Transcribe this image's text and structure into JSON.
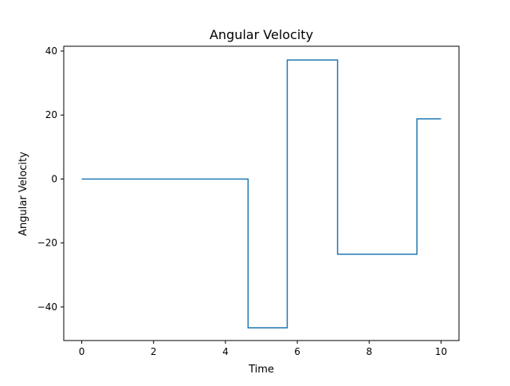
{
  "chart_data": {
    "type": "line",
    "title": "Angular Velocity",
    "xlabel": "Time",
    "ylabel": "Angular Velocity",
    "xlim": [
      -0.5,
      10.5
    ],
    "ylim": [
      -50.5,
      41.5
    ],
    "xticks": [
      0,
      2,
      4,
      6,
      8,
      10
    ],
    "xtick_labels": [
      "0",
      "2",
      "4",
      "6",
      "8",
      "10"
    ],
    "yticks": [
      -40,
      -20,
      0,
      20,
      40
    ],
    "ytick_labels": [
      "−40",
      "−20",
      "0",
      "20",
      "40"
    ],
    "grid": false,
    "legend": false,
    "series": [
      {
        "color": "#1f77b4",
        "drawstyle": "steps-post",
        "x": [
          0,
          4.63,
          5.72,
          7.12,
          9.33,
          10
        ],
        "y": [
          0,
          -46.5,
          37.2,
          -23.5,
          18.8,
          18.8
        ]
      }
    ]
  }
}
